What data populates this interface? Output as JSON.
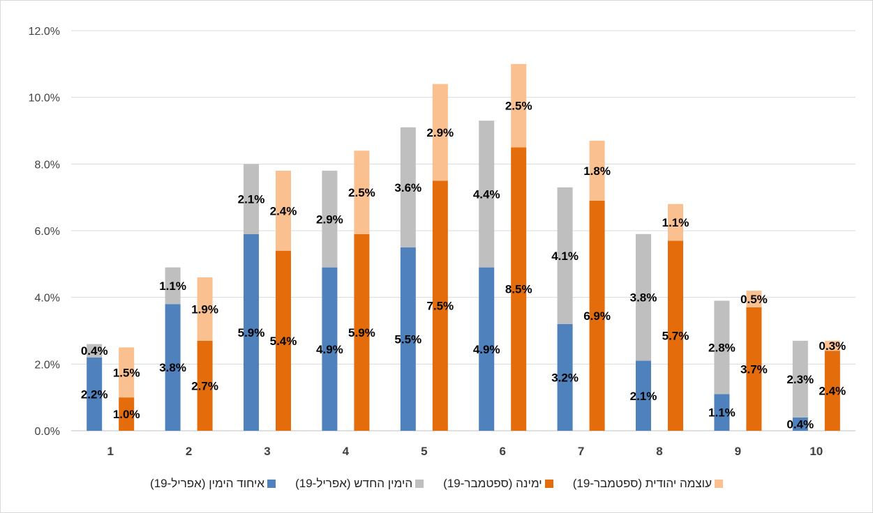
{
  "chart_data": {
    "type": "bar",
    "title": "",
    "xlabel": "",
    "ylabel": "",
    "ylim": [
      0,
      12
    ],
    "y_ticks": [
      "0.0%",
      "2.0%",
      "4.0%",
      "6.0%",
      "8.0%",
      "10.0%",
      "12.0%"
    ],
    "grid": true,
    "legend_position": "bottom",
    "categories": [
      "1",
      "2",
      "3",
      "4",
      "5",
      "6",
      "7",
      "8",
      "9",
      "10"
    ],
    "stacks": [
      {
        "series": [
          {
            "name": "איחוד הימין (אפריל-19)",
            "color": "#4f81bd",
            "values": [
              2.2,
              3.8,
              5.9,
              4.9,
              5.5,
              4.9,
              3.2,
              2.1,
              1.1,
              0.4
            ],
            "labels": [
              "2.2%",
              "3.8%",
              "5.9%",
              "4.9%",
              "5.5%",
              "4.9%",
              "3.2%",
              "2.1%",
              "1.1%",
              "0.4%"
            ]
          },
          {
            "name": "הימין החדש (אפריל-19)",
            "color": "#bfbfbf",
            "values": [
              0.4,
              1.1,
              2.1,
              2.9,
              3.6,
              4.4,
              4.1,
              3.8,
              2.8,
              2.3
            ],
            "labels": [
              "0.4%",
              "1.1%",
              "2.1%",
              "2.9%",
              "3.6%",
              "4.4%",
              "4.1%",
              "3.8%",
              "2.8%",
              "2.3%"
            ]
          }
        ]
      },
      {
        "series": [
          {
            "name": "ימינה (ספטמבר-19)",
            "color": "#e46c0a",
            "values": [
              1.0,
              2.7,
              5.4,
              5.9,
              7.5,
              8.5,
              6.9,
              5.7,
              3.7,
              2.4
            ],
            "labels": [
              "1.0%",
              "2.7%",
              "5.4%",
              "5.9%",
              "7.5%",
              "8.5%",
              "6.9%",
              "5.7%",
              "3.7%",
              "2.4%"
            ]
          },
          {
            "name": "עוצמה יהודית (ספטמבר-19)",
            "color": "#fac090",
            "values": [
              1.5,
              1.9,
              2.4,
              2.5,
              2.9,
              2.5,
              1.8,
              1.1,
              0.5,
              0.3
            ],
            "labels": [
              "1.5%",
              "1.9%",
              "2.4%",
              "2.5%",
              "2.9%",
              "2.5%",
              "1.8%",
              "1.1%",
              "0.5%",
              "0.3%"
            ]
          }
        ]
      }
    ],
    "legend": [
      "איחוד הימין (אפריל-19)",
      "הימין החדש (אפריל-19)",
      "ימינה (ספטמבר-19)",
      "עוצמה יהודית (ספטמבר-19)"
    ]
  },
  "colors": {
    "grid": "#d9d9d9",
    "axis": "#bfbfbf",
    "legend_swatches": [
      "#4f81bd",
      "#bfbfbf",
      "#e46c0a",
      "#fac090"
    ]
  }
}
